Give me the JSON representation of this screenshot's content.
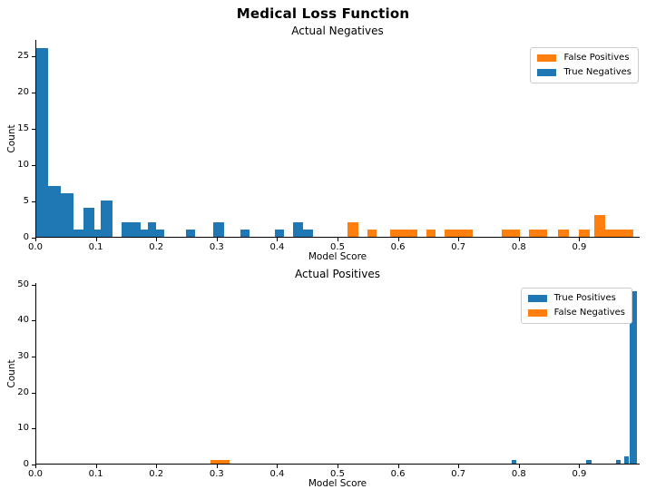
{
  "figure_title": "Medical Loss Function",
  "colors": {
    "blue": "#1f77b4",
    "orange": "#ff7f0e",
    "axis": "#000000",
    "legend_border": "#cccccc",
    "background": "#ffffff"
  },
  "chart_data": [
    {
      "type": "bar",
      "title": "Actual Negatives",
      "xlabel": "Model Score",
      "ylabel": "Count",
      "xlim": [
        0.0,
        1.0
      ],
      "ylim": [
        0,
        27.3
      ],
      "grid": false,
      "legend_position": "upper right",
      "xticks": [
        {
          "v": 0.0,
          "label": "0.0"
        },
        {
          "v": 0.1,
          "label": "0.1"
        },
        {
          "v": 0.2,
          "label": "0.2"
        },
        {
          "v": 0.3,
          "label": "0.3"
        },
        {
          "v": 0.4,
          "label": "0.4"
        },
        {
          "v": 0.5,
          "label": "0.5"
        },
        {
          "v": 0.6,
          "label": "0.6"
        },
        {
          "v": 0.7,
          "label": "0.7"
        },
        {
          "v": 0.8,
          "label": "0.8"
        },
        {
          "v": 0.9,
          "label": "0.9"
        }
      ],
      "yticks": [
        {
          "v": 0,
          "label": "0"
        },
        {
          "v": 5,
          "label": "5"
        },
        {
          "v": 10,
          "label": "10"
        },
        {
          "v": 15,
          "label": "15"
        },
        {
          "v": 20,
          "label": "20"
        },
        {
          "v": 25,
          "label": "25"
        }
      ],
      "legend": [
        {
          "label": "False Positives",
          "color": "#ff7f0e"
        },
        {
          "label": "True Negatives",
          "color": "#1f77b4"
        }
      ],
      "series": [
        {
          "name": "True Negatives",
          "color": "#1f77b4",
          "bars": [
            {
              "x": 0.001,
              "w": 0.02,
              "count": 26
            },
            {
              "x": 0.021,
              "w": 0.021,
              "count": 7
            },
            {
              "x": 0.042,
              "w": 0.021,
              "count": 6
            },
            {
              "x": 0.063,
              "w": 0.019,
              "count": 1
            },
            {
              "x": 0.079,
              "w": 0.019,
              "count": 4
            },
            {
              "x": 0.098,
              "w": 0.01,
              "count": 1
            },
            {
              "x": 0.108,
              "w": 0.02,
              "count": 5
            },
            {
              "x": 0.142,
              "w": 0.032,
              "count": 2
            },
            {
              "x": 0.174,
              "w": 0.012,
              "count": 1
            },
            {
              "x": 0.186,
              "w": 0.014,
              "count": 2
            },
            {
              "x": 0.2,
              "w": 0.014,
              "count": 1
            },
            {
              "x": 0.249,
              "w": 0.015,
              "count": 1
            },
            {
              "x": 0.294,
              "w": 0.018,
              "count": 2
            },
            {
              "x": 0.339,
              "w": 0.015,
              "count": 1
            },
            {
              "x": 0.397,
              "w": 0.015,
              "count": 1
            },
            {
              "x": 0.426,
              "w": 0.017,
              "count": 2
            },
            {
              "x": 0.443,
              "w": 0.017,
              "count": 1
            }
          ]
        },
        {
          "name": "False Positives",
          "color": "#ff7f0e",
          "bars": [
            {
              "x": 0.516,
              "w": 0.018,
              "count": 2
            },
            {
              "x": 0.549,
              "w": 0.015,
              "count": 1
            },
            {
              "x": 0.587,
              "w": 0.045,
              "count": 1
            },
            {
              "x": 0.647,
              "w": 0.015,
              "count": 1
            },
            {
              "x": 0.677,
              "w": 0.047,
              "count": 1
            },
            {
              "x": 0.772,
              "w": 0.03,
              "count": 1
            },
            {
              "x": 0.817,
              "w": 0.03,
              "count": 1
            },
            {
              "x": 0.865,
              "w": 0.018,
              "count": 1
            },
            {
              "x": 0.899,
              "w": 0.018,
              "count": 1
            },
            {
              "x": 0.925,
              "w": 0.018,
              "count": 3
            },
            {
              "x": 0.943,
              "w": 0.047,
              "count": 1
            }
          ]
        }
      ]
    },
    {
      "type": "bar",
      "title": "Actual Positives",
      "xlabel": "Model Score",
      "ylabel": "Count",
      "xlim": [
        0.0,
        1.0
      ],
      "ylim": [
        0,
        50.4
      ],
      "grid": false,
      "legend_position": "upper right",
      "xticks": [
        {
          "v": 0.0,
          "label": "0.0"
        },
        {
          "v": 0.1,
          "label": "0.1"
        },
        {
          "v": 0.2,
          "label": "0.2"
        },
        {
          "v": 0.3,
          "label": "0.3"
        },
        {
          "v": 0.4,
          "label": "0.4"
        },
        {
          "v": 0.5,
          "label": "0.5"
        },
        {
          "v": 0.6,
          "label": "0.6"
        },
        {
          "v": 0.7,
          "label": "0.7"
        },
        {
          "v": 0.8,
          "label": "0.8"
        },
        {
          "v": 0.9,
          "label": "0.9"
        }
      ],
      "yticks": [
        {
          "v": 0,
          "label": "0"
        },
        {
          "v": 10,
          "label": "10"
        },
        {
          "v": 20,
          "label": "20"
        },
        {
          "v": 30,
          "label": "30"
        },
        {
          "v": 40,
          "label": "40"
        },
        {
          "v": 50,
          "label": "50"
        }
      ],
      "legend": [
        {
          "label": "True Positives",
          "color": "#1f77b4"
        },
        {
          "label": "False Negatives",
          "color": "#ff7f0e"
        }
      ],
      "series": [
        {
          "name": "True Positives",
          "color": "#1f77b4",
          "bars": [
            {
              "x": 0.788,
              "w": 0.008,
              "count": 1
            },
            {
              "x": 0.912,
              "w": 0.008,
              "count": 1
            },
            {
              "x": 0.961,
              "w": 0.008,
              "count": 1
            },
            {
              "x": 0.974,
              "w": 0.008,
              "count": 2
            },
            {
              "x": 0.984,
              "w": 0.011,
              "count": 48
            }
          ]
        },
        {
          "name": "False Negatives",
          "color": "#ff7f0e",
          "bars": [
            {
              "x": 0.29,
              "w": 0.031,
              "count": 1
            }
          ]
        }
      ]
    }
  ]
}
